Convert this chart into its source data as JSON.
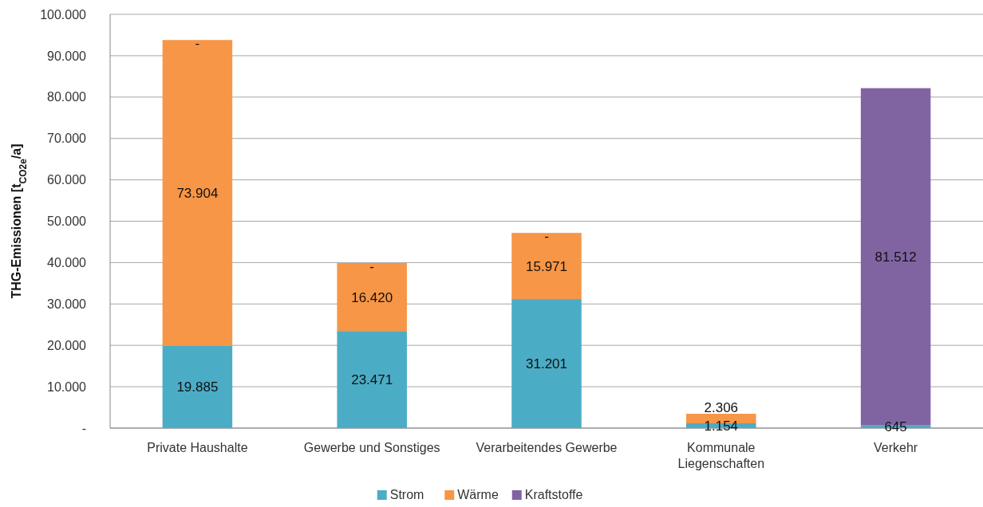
{
  "chart_data": {
    "type": "bar",
    "stacked": true,
    "ylabel": "THG-Emissionen [t$_{CO2e}$/a]",
    "categories": [
      "Private Haushalte",
      "Gewerbe und Sonstiges",
      "Verarbeitendes Gewerbe",
      "Kommunale Liegenschaften",
      "Verkehr"
    ],
    "series": [
      {
        "name": "Strom",
        "color": "#4bacc6",
        "values": [
          19885,
          23471,
          31201,
          1154,
          645
        ],
        "value_labels": [
          "19.885",
          "23.471",
          "31.201",
          "1.154",
          "645"
        ]
      },
      {
        "name": "Wärme",
        "color": "#f79646",
        "values": [
          73904,
          16420,
          15971,
          2306,
          0
        ],
        "value_labels": [
          "73.904",
          "16.420",
          "15.971",
          "2.306",
          null
        ]
      },
      {
        "name": "Kraftstoffe",
        "color": "#8064a2",
        "values": [
          0,
          0,
          0,
          0,
          81512
        ],
        "value_labels": [
          "-",
          "-",
          "-",
          null,
          "81.512"
        ]
      }
    ],
    "ylim": [
      0,
      100000
    ],
    "yticks": [
      {
        "value": 0,
        "label": "-"
      },
      {
        "value": 10000,
        "label": "10.000"
      },
      {
        "value": 20000,
        "label": "20.000"
      },
      {
        "value": 30000,
        "label": "30.000"
      },
      {
        "value": 40000,
        "label": "40.000"
      },
      {
        "value": 50000,
        "label": "50.000"
      },
      {
        "value": 60000,
        "label": "60.000"
      },
      {
        "value": 70000,
        "label": "70.000"
      },
      {
        "value": 80000,
        "label": "80.000"
      },
      {
        "value": 90000,
        "label": "90.000"
      },
      {
        "value": 100000,
        "label": "100.000"
      }
    ],
    "grid": "y",
    "legend": "bottom"
  }
}
